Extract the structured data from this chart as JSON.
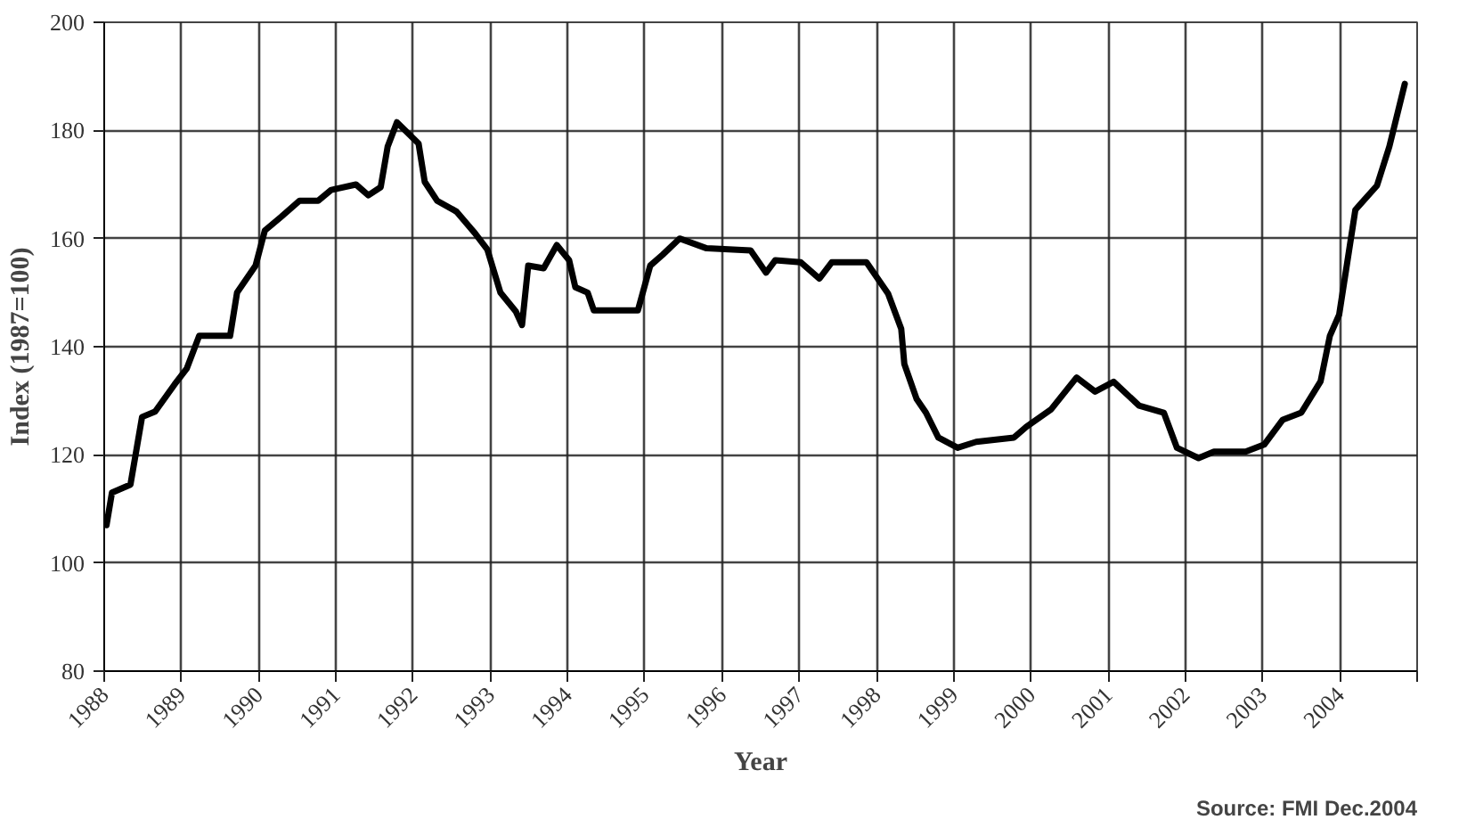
{
  "chart_data": {
    "type": "line",
    "xlabel": "Year",
    "ylabel": "Index (1987=100)",
    "annotations": [
      "Source: FMI Dec.2004"
    ],
    "xlim": [
      1988,
      2005
    ],
    "ylim": [
      80,
      200
    ],
    "xticks": [
      1988,
      1989,
      1990,
      1991,
      1992,
      1993,
      1994,
      1995,
      1996,
      1997,
      1998,
      1999,
      2000,
      2001,
      2002,
      2003,
      2004,
      {
        "value": 2005,
        "label": null
      }
    ],
    "yticks": [
      80,
      100,
      120,
      140,
      160,
      180,
      200
    ],
    "grid": true,
    "marker": "none",
    "line_style": "solid",
    "series": [
      {
        "color": "#000000",
        "x": [
          1988.03,
          1988.1,
          1988.34,
          1988.49,
          1988.66,
          1988.91,
          1989.07,
          1989.23,
          1989.63,
          1989.72,
          1989.96,
          1990.08,
          1990.29,
          1990.53,
          1990.77,
          1990.94,
          1991.26,
          1991.42,
          1991.58,
          1991.67,
          1991.79,
          1992.07,
          1992.15,
          1992.31,
          1992.56,
          1992.8,
          1992.96,
          1993.13,
          1993.33,
          1993.41,
          1993.49,
          1993.69,
          1993.86,
          1994.02,
          1994.1,
          1994.26,
          1994.34,
          1994.91,
          1995.07,
          1995.23,
          1995.45,
          1995.8,
          1996.37,
          1996.57,
          1996.69,
          1997.02,
          1997.26,
          1997.42,
          1997.87,
          1998.15,
          1998.32,
          1998.36,
          1998.52,
          1998.64,
          1998.8,
          1999.05,
          1999.29,
          1999.78,
          1999.94,
          2000.26,
          2000.59,
          2000.83,
          2001.07,
          2001.4,
          2001.72,
          2001.89,
          2002.17,
          2002.37,
          2002.78,
          2003.02,
          2003.26,
          2003.5,
          2003.75,
          2003.87,
          2003.99,
          2004.2,
          2004.48,
          2004.64,
          2004.84
        ],
        "values": [
          107,
          113,
          114.5,
          127,
          128,
          133,
          136,
          142,
          142,
          150,
          155,
          161.5,
          164,
          167,
          167,
          169,
          170,
          168,
          169.5,
          177,
          181.5,
          177.6,
          170.5,
          167,
          165,
          161,
          158,
          150,
          146.5,
          144,
          155,
          154.5,
          158.8,
          156,
          151,
          150,
          146.7,
          146.7,
          155,
          157,
          160,
          158.2,
          157.8,
          153.7,
          156,
          155.6,
          152.6,
          155.6,
          155.6,
          149.8,
          143.3,
          136.8,
          130.3,
          127.8,
          123.2,
          121.3,
          122.4,
          123.2,
          125.2,
          128.4,
          134.3,
          131.7,
          133.5,
          129.1,
          127.8,
          121.3,
          119.4,
          120.6,
          120.6,
          121.9,
          126.5,
          127.8,
          133.6,
          142,
          145.9,
          165.3,
          169.8,
          177,
          188.6
        ]
      }
    ]
  }
}
